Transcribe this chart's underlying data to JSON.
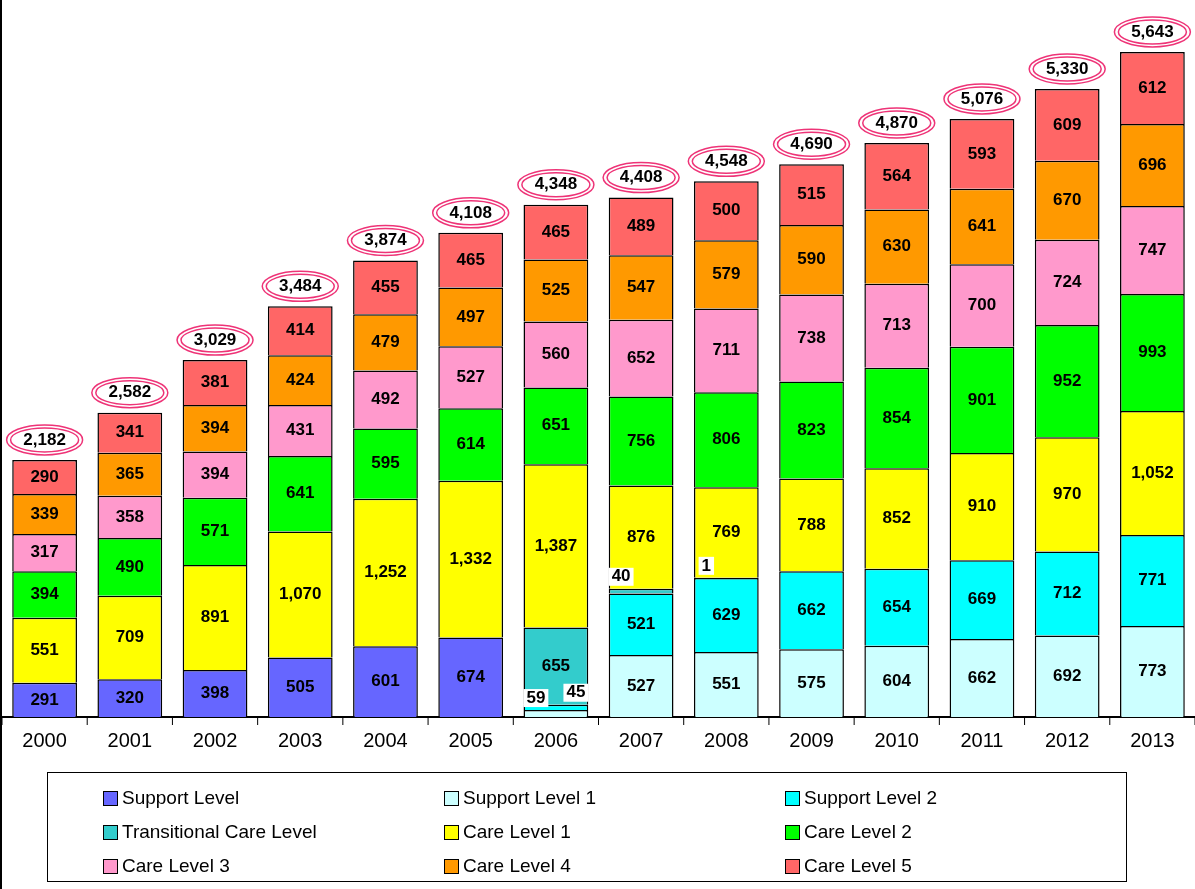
{
  "chart_data": {
    "type": "bar",
    "stacked": true,
    "data_labels": true,
    "legend": "bottom",
    "grid": false,
    "categories": [
      "2000",
      "2001",
      "2002",
      "2003",
      "2004",
      "2005",
      "2006",
      "2007",
      "2008",
      "2009",
      "2010",
      "2011",
      "2012",
      "2013"
    ],
    "totals": [
      "2,182",
      "2,582",
      "3,029",
      "3,484",
      "3,874",
      "4,108",
      "4,348",
      "4,408",
      "4,548",
      "4,690",
      "4,870",
      "5,076",
      "5,330",
      "5,643"
    ],
    "series": [
      {
        "name": "Support Level",
        "color": "#6666ff",
        "values": [
          291,
          320,
          398,
          505,
          601,
          674,
          null,
          null,
          null,
          null,
          null,
          null,
          null,
          null
        ]
      },
      {
        "name": "Support Level 1",
        "color": "#ccffff",
        "values": [
          null,
          null,
          null,
          null,
          null,
          null,
          59,
          527,
          551,
          575,
          604,
          662,
          692,
          773
        ]
      },
      {
        "name": "Support Level 2",
        "color": "#00ffff",
        "values": [
          null,
          null,
          null,
          null,
          null,
          null,
          45,
          521,
          629,
          662,
          654,
          669,
          712,
          771
        ]
      },
      {
        "name": "Transitional Care Level",
        "color": "#33cccc",
        "values": [
          null,
          null,
          null,
          null,
          null,
          null,
          655,
          40,
          1,
          null,
          null,
          null,
          null,
          null
        ]
      },
      {
        "name": "Care Level 1",
        "color": "#ffff00",
        "values": [
          551,
          709,
          891,
          1070,
          1252,
          1332,
          1387,
          876,
          769,
          788,
          852,
          910,
          970,
          1052
        ],
        "value_labels": [
          "551",
          "709",
          "891",
          "1,070",
          "1,252",
          "1,332",
          "1,387",
          "876",
          "769",
          "788",
          "852",
          "910",
          "970",
          "1,052"
        ]
      },
      {
        "name": "Care Level 2",
        "color": "#00ff00",
        "values": [
          394,
          490,
          571,
          641,
          595,
          614,
          651,
          756,
          806,
          823,
          854,
          901,
          952,
          993
        ]
      },
      {
        "name": "Care Level 3",
        "color": "#ff99cc",
        "values": [
          317,
          358,
          394,
          431,
          492,
          527,
          560,
          652,
          711,
          738,
          713,
          700,
          724,
          747
        ]
      },
      {
        "name": "Care Level 4",
        "color": "#ff9900",
        "values": [
          339,
          365,
          394,
          424,
          479,
          497,
          525,
          547,
          579,
          590,
          630,
          641,
          670,
          696
        ]
      },
      {
        "name": "Care Level 5",
        "color": "#ff6666",
        "values": [
          290,
          341,
          381,
          414,
          455,
          465,
          465,
          489,
          500,
          515,
          564,
          593,
          609,
          612
        ]
      }
    ]
  }
}
